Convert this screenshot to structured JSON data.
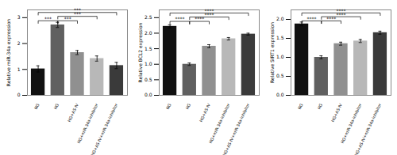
{
  "chart_data": [
    {
      "type": "bar",
      "ylabel": "Relative miR-34a expression",
      "categories": [
        "NG",
        "HG",
        "HG+AS-IV",
        "HG+miR-34a-inhibitor",
        "HG+AS-IV+miR-34a-inhibitor"
      ],
      "values": [
        1.02,
        2.72,
        1.65,
        1.42,
        1.15
      ],
      "errors": [
        0.12,
        0.1,
        0.08,
        0.1,
        0.12
      ],
      "colors": [
        "#111111",
        "#606060",
        "#909090",
        "#b8b8b8",
        "#3a3a3a"
      ],
      "ylim": [
        0,
        3.3
      ],
      "yticks": [
        0,
        1,
        2,
        3
      ],
      "annotations": [
        {
          "label": "***",
          "x1": "NG",
          "x2": "HG",
          "y": 2.88
        },
        {
          "label": "***",
          "x1": "HG",
          "x2": "HG+AS-IV",
          "y": 2.88
        },
        {
          "label": "***",
          "x1": "HG",
          "x2": "HG+miR-34a-inhibitor",
          "y": 3.05
        },
        {
          "label": "***",
          "x1": "NG",
          "x2": "HG+AS-IV+miR-34a-inhibitor",
          "y": 3.2
        }
      ]
    },
    {
      "type": "bar",
      "ylabel": "Relative BCL2 expression",
      "categories": [
        "NG",
        "HG",
        "HG+AS-IV",
        "HG+miR-34a-inhibitor",
        "HG+AS-IV+miR-34a-inhibitor"
      ],
      "values": [
        2.22,
        1.0,
        1.58,
        1.82,
        1.97
      ],
      "errors": [
        0.05,
        0.04,
        0.05,
        0.04,
        0.03
      ],
      "colors": [
        "#111111",
        "#606060",
        "#909090",
        "#b8b8b8",
        "#3a3a3a"
      ],
      "ylim": [
        0.0,
        2.75
      ],
      "yticks": [
        {
          "value": 0,
          "label": "0.0"
        },
        0.5,
        {
          "value": 1,
          "label": "1.0"
        },
        1.5,
        {
          "value": 2,
          "label": "2.0"
        },
        2.5
      ],
      "annotations": [
        {
          "label": "****",
          "x1": "NG",
          "x2": "HG",
          "y": 2.38
        },
        {
          "label": "****",
          "x1": "HG",
          "x2": "HG+AS-IV",
          "y": 2.38
        },
        {
          "label": "****",
          "x1": "HG",
          "x2": "HG+miR-34a-inhibitor",
          "y": 2.52
        },
        {
          "label": "****",
          "x1": "NG",
          "x2": "HG+AS-IV+miR-34a-inhibitor",
          "y": 2.65
        }
      ]
    },
    {
      "type": "bar",
      "ylabel": "Relative SIRT1 expression",
      "categories": [
        "NG",
        "HG",
        "HG+AS-IV",
        "HG+miR-34a-inhibitor",
        "HG+AS-IV+miR-34a-inhibitor"
      ],
      "values": [
        1.88,
        1.0,
        1.36,
        1.43,
        1.65
      ],
      "errors": [
        0.05,
        0.04,
        0.04,
        0.04,
        0.04
      ],
      "colors": [
        "#111111",
        "#606060",
        "#909090",
        "#b8b8b8",
        "#3a3a3a"
      ],
      "ylim": [
        0.0,
        2.25
      ],
      "yticks": [
        {
          "value": 0,
          "label": "0.0"
        },
        0.5,
        {
          "value": 1,
          "label": "1.0"
        },
        1.5,
        {
          "value": 2,
          "label": "2.0"
        }
      ],
      "annotations": [
        {
          "label": "****",
          "x1": "NG",
          "x2": "HG",
          "y": 1.96
        },
        {
          "label": "****",
          "x1": "HG",
          "x2": "HG+AS-IV",
          "y": 1.96
        },
        {
          "label": "****",
          "x1": "HG",
          "x2": "HG+miR-34a-inhibitor",
          "y": 2.07
        },
        {
          "label": "****",
          "x1": "NG",
          "x2": "HG+AS-IV+miR-34a-inhibitor",
          "y": 2.17
        }
      ]
    }
  ]
}
